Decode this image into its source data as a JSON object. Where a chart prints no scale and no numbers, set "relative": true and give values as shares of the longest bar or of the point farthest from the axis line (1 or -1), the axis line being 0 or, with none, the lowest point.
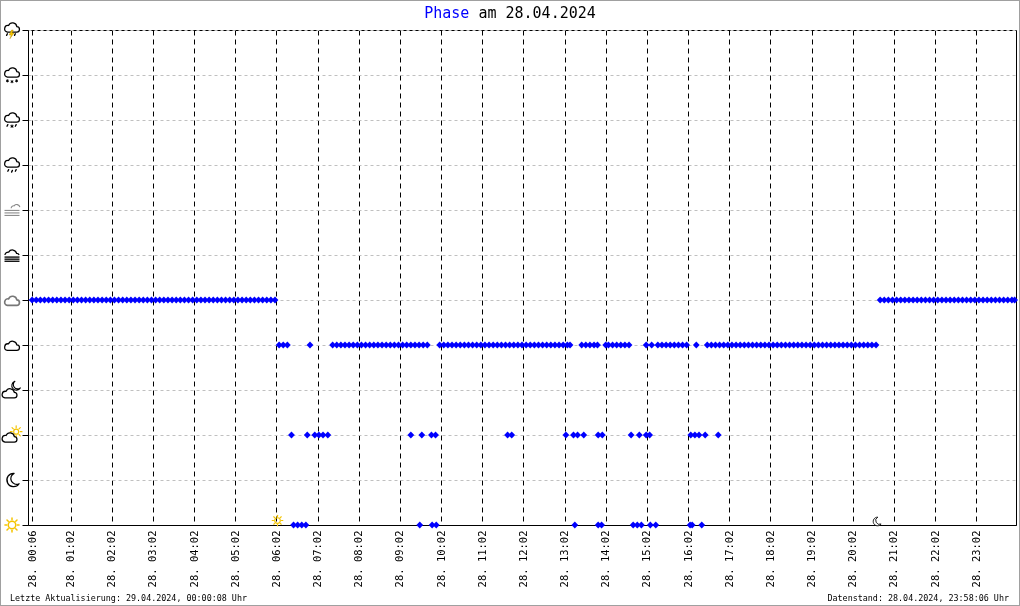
{
  "chart_data": {
    "type": "scatter",
    "title": "Phase am 28.04.2024",
    "annotations": [
      "Letzte Aktualisierung: 29.04.2024, 00:00:08 Uhr",
      "Datenstand: 28.04.2024, 23:58:06 Uhr"
    ],
    "relative": true,
    "grid": true,
    "marker": "diamond",
    "tick_labels": "x",
    "color": "#0000ff",
    "xlim": [
      "2024-04-28T00:00",
      "2024-04-29T00:00"
    ],
    "xticks": [
      {
        "value": "2024-04-28T00:06",
        "label": "28. 00:06"
      },
      {
        "value": "2024-04-28T01:02",
        "label": "28. 01:02"
      },
      {
        "value": "2024-04-28T02:02",
        "label": "28. 02:02"
      },
      {
        "value": "2024-04-28T03:02",
        "label": "28. 03:02"
      },
      {
        "value": "2024-04-28T04:02",
        "label": "28. 04:02"
      },
      {
        "value": "2024-04-28T05:02",
        "label": "28. 05:02"
      },
      {
        "value": "2024-04-28T06:02",
        "label": "28. 06:02"
      },
      {
        "value": "2024-04-28T07:02",
        "label": "28. 07:02"
      },
      {
        "value": "2024-04-28T08:02",
        "label": "28. 08:02"
      },
      {
        "value": "2024-04-28T09:02",
        "label": "28. 09:02"
      },
      {
        "value": "2024-04-28T10:02",
        "label": "28. 10:02"
      },
      {
        "value": "2024-04-28T11:02",
        "label": "28. 11:02"
      },
      {
        "value": "2024-04-28T12:02",
        "label": "28. 12:02"
      },
      {
        "value": "2024-04-28T13:02",
        "label": "28. 13:02"
      },
      {
        "value": "2024-04-28T14:02",
        "label": "28. 14:02"
      },
      {
        "value": "2024-04-28T15:02",
        "label": "28. 15:02"
      },
      {
        "value": "2024-04-28T16:02",
        "label": "28. 16:02"
      },
      {
        "value": "2024-04-28T17:02",
        "label": "28. 17:02"
      },
      {
        "value": "2024-04-28T18:02",
        "label": "28. 18:02"
      },
      {
        "value": "2024-04-28T19:02",
        "label": "28. 19:02"
      },
      {
        "value": "2024-04-28T20:02",
        "label": "28. 20:02"
      },
      {
        "value": "2024-04-28T21:02",
        "label": "28. 21:02"
      },
      {
        "value": "2024-04-28T22:02",
        "label": "28. 22:02"
      },
      {
        "value": "2024-04-28T23:02",
        "label": "28. 23:02"
      }
    ],
    "x": [
      "2024-04-28T00:06",
      "2024-04-28T00:12",
      "2024-04-28T00:18",
      "2024-04-28T00:24",
      "2024-04-28T00:30",
      "2024-04-28T00:36",
      "2024-04-28T00:42",
      "2024-04-28T00:48",
      "2024-04-28T00:54",
      "2024-04-28T01:00",
      "2024-04-28T01:06",
      "2024-04-28T01:12",
      "2024-04-28T01:18",
      "2024-04-28T01:24",
      "2024-04-28T01:30",
      "2024-04-28T01:36",
      "2024-04-28T01:42",
      "2024-04-28T01:48",
      "2024-04-28T01:54",
      "2024-04-28T02:00",
      "2024-04-28T02:06",
      "2024-04-28T02:12",
      "2024-04-28T02:18",
      "2024-04-28T02:24",
      "2024-04-28T02:30",
      "2024-04-28T02:36",
      "2024-04-28T02:42",
      "2024-04-28T02:48",
      "2024-04-28T02:54",
      "2024-04-28T03:00",
      "2024-04-28T03:06",
      "2024-04-28T03:12",
      "2024-04-28T03:18",
      "2024-04-28T03:24",
      "2024-04-28T03:30",
      "2024-04-28T03:36",
      "2024-04-28T03:42",
      "2024-04-28T03:48",
      "2024-04-28T03:54",
      "2024-04-28T04:00",
      "2024-04-28T04:06",
      "2024-04-28T04:12",
      "2024-04-28T04:18",
      "2024-04-28T04:24",
      "2024-04-28T04:30",
      "2024-04-28T04:36",
      "2024-04-28T04:42",
      "2024-04-28T04:48",
      "2024-04-28T04:54",
      "2024-04-28T05:00",
      "2024-04-28T05:06",
      "2024-04-28T05:12",
      "2024-04-28T05:18",
      "2024-04-28T05:24",
      "2024-04-28T05:30",
      "2024-04-28T05:36",
      "2024-04-28T05:42",
      "2024-04-28T05:48",
      "2024-04-28T05:54",
      "2024-04-28T06:00",
      "2024-04-28T20:42",
      "2024-04-28T20:48",
      "2024-04-28T20:54",
      "2024-04-28T21:00",
      "2024-04-28T21:06",
      "2024-04-28T21:12",
      "2024-04-28T21:18",
      "2024-04-28T21:24",
      "2024-04-28T21:30",
      "2024-04-28T21:36",
      "2024-04-28T21:42",
      "2024-04-28T21:48",
      "2024-04-28T21:54",
      "2024-04-28T22:00",
      "2024-04-28T22:06",
      "2024-04-28T22:12",
      "2024-04-28T22:18",
      "2024-04-28T22:24",
      "2024-04-28T22:30",
      "2024-04-28T22:36",
      "2024-04-28T22:42",
      "2024-04-28T22:48",
      "2024-04-28T22:54",
      "2024-04-28T23:00",
      "2024-04-28T23:06",
      "2024-04-28T23:12",
      "2024-04-28T23:18",
      "2024-04-28T23:24",
      "2024-04-28T23:30",
      "2024-04-28T23:36",
      "2024-04-28T23:42",
      "2024-04-28T23:48",
      "2024-04-28T23:54",
      "2024-04-28T23:58",
      "2024-04-28T06:06",
      "2024-04-28T06:12",
      "2024-04-28T06:18",
      "2024-04-28T06:51",
      "2024-04-28T07:24",
      "2024-04-28T07:30",
      "2024-04-28T07:36",
      "2024-04-28T07:42",
      "2024-04-28T07:48",
      "2024-04-28T07:54",
      "2024-04-28T08:00",
      "2024-04-28T08:06",
      "2024-04-28T08:12",
      "2024-04-28T08:18",
      "2024-04-28T08:24",
      "2024-04-28T08:30",
      "2024-04-28T08:36",
      "2024-04-28T08:42",
      "2024-04-28T08:48",
      "2024-04-28T08:54",
      "2024-04-28T09:00",
      "2024-04-28T09:06",
      "2024-04-28T09:12",
      "2024-04-28T09:18",
      "2024-04-28T09:24",
      "2024-04-28T09:30",
      "2024-04-28T09:36",
      "2024-04-28T09:42",
      "2024-04-28T10:00",
      "2024-04-28T10:06",
      "2024-04-28T10:12",
      "2024-04-28T10:18",
      "2024-04-28T10:24",
      "2024-04-28T10:30",
      "2024-04-28T10:36",
      "2024-04-28T10:42",
      "2024-04-28T10:48",
      "2024-04-28T10:54",
      "2024-04-28T11:00",
      "2024-04-28T11:06",
      "2024-04-28T11:12",
      "2024-04-28T11:18",
      "2024-04-28T11:24",
      "2024-04-28T11:30",
      "2024-04-28T11:36",
      "2024-04-28T11:42",
      "2024-04-28T11:48",
      "2024-04-28T11:54",
      "2024-04-28T12:00",
      "2024-04-28T12:06",
      "2024-04-28T12:12",
      "2024-04-28T12:18",
      "2024-04-28T12:24",
      "2024-04-28T12:30",
      "2024-04-28T12:36",
      "2024-04-28T12:42",
      "2024-04-28T12:48",
      "2024-04-28T12:54",
      "2024-04-28T13:00",
      "2024-04-28T13:06",
      "2024-04-28T13:10",
      "2024-04-28T13:27",
      "2024-04-28T13:33",
      "2024-04-28T13:39",
      "2024-04-28T13:45",
      "2024-04-28T13:50",
      "2024-04-28T14:02",
      "2024-04-28T14:06",
      "2024-04-28T14:12",
      "2024-04-28T14:18",
      "2024-04-28T14:24",
      "2024-04-28T14:30",
      "2024-04-28T14:36",
      "2024-04-28T15:01",
      "2024-04-28T15:09",
      "2024-04-28T15:18",
      "2024-04-28T15:24",
      "2024-04-28T15:30",
      "2024-04-28T15:36",
      "2024-04-28T15:42",
      "2024-04-28T15:48",
      "2024-04-28T15:54",
      "2024-04-28T16:00",
      "2024-04-28T16:14",
      "2024-04-28T16:30",
      "2024-04-28T16:36",
      "2024-04-28T16:42",
      "2024-04-28T16:48",
      "2024-04-28T16:54",
      "2024-04-28T17:00",
      "2024-04-28T17:06",
      "2024-04-28T17:12",
      "2024-04-28T17:18",
      "2024-04-28T17:24",
      "2024-04-28T17:30",
      "2024-04-28T17:36",
      "2024-04-28T17:42",
      "2024-04-28T17:48",
      "2024-04-28T17:54",
      "2024-04-28T18:00",
      "2024-04-28T18:06",
      "2024-04-28T18:12",
      "2024-04-28T18:18",
      "2024-04-28T18:24",
      "2024-04-28T18:30",
      "2024-04-28T18:36",
      "2024-04-28T18:42",
      "2024-04-28T18:48",
      "2024-04-28T18:54",
      "2024-04-28T19:00",
      "2024-04-28T19:06",
      "2024-04-28T19:12",
      "2024-04-28T19:18",
      "2024-04-28T19:24",
      "2024-04-28T19:30",
      "2024-04-28T19:36",
      "2024-04-28T19:42",
      "2024-04-28T19:48",
      "2024-04-28T19:54",
      "2024-04-28T20:00",
      "2024-04-28T20:06",
      "2024-04-28T20:12",
      "2024-04-28T20:18",
      "2024-04-28T20:24",
      "2024-04-28T20:30",
      "2024-04-28T20:36",
      "2024-04-28T06:24",
      "2024-04-28T06:47",
      "2024-04-28T06:58",
      "2024-04-28T07:04",
      "2024-04-28T07:10",
      "2024-04-28T07:17",
      "2024-04-28T09:18",
      "2024-04-28T09:34",
      "2024-04-28T09:48",
      "2024-04-28T09:54",
      "2024-04-28T11:39",
      "2024-04-28T11:45",
      "2024-04-28T13:04",
      "2024-04-28T13:15",
      "2024-04-28T13:21",
      "2024-04-28T13:30",
      "2024-04-28T13:51",
      "2024-04-28T13:57",
      "2024-04-28T14:39",
      "2024-04-28T14:51",
      "2024-04-28T15:01",
      "2024-04-28T15:06",
      "2024-04-28T16:06",
      "2024-04-28T16:12",
      "2024-04-28T16:18",
      "2024-04-28T16:27",
      "2024-04-28T16:46",
      "2024-04-28T06:27",
      "2024-04-28T06:33",
      "2024-04-28T06:39",
      "2024-04-28T06:45",
      "2024-04-28T09:31",
      "2024-04-28T09:49",
      "2024-04-28T09:55",
      "2024-04-28T13:17",
      "2024-04-28T13:51",
      "2024-04-28T13:56",
      "2024-04-28T14:42",
      "2024-04-28T14:48",
      "2024-04-28T14:54",
      "2024-04-28T15:07",
      "2024-04-28T15:15",
      "2024-04-28T16:05",
      "2024-04-28T16:08",
      "2024-04-28T16:22"
    ],
    "values": [
      1,
      1,
      1,
      1,
      1,
      1,
      1,
      1,
      1,
      1,
      1,
      1,
      1,
      1,
      1,
      1,
      1,
      1,
      1,
      1,
      1,
      1,
      1,
      1,
      1,
      1,
      1,
      1,
      1,
      1,
      1,
      1,
      1,
      1,
      1,
      1,
      1,
      1,
      1,
      1,
      1,
      1,
      1,
      1,
      1,
      1,
      1,
      1,
      1,
      1,
      1,
      1,
      1,
      1,
      1,
      1,
      1,
      1,
      1,
      1,
      1,
      1,
      1,
      1,
      1,
      1,
      1,
      1,
      1,
      1,
      1,
      1,
      1,
      1,
      1,
      1,
      1,
      1,
      1,
      1,
      1,
      1,
      1,
      1,
      1,
      1,
      1,
      1,
      1,
      1,
      1,
      1,
      1,
      1,
      0.8,
      0.8,
      0.8,
      0.8,
      0.8,
      0.8,
      0.8,
      0.8,
      0.8,
      0.8,
      0.8,
      0.8,
      0.8,
      0.8,
      0.8,
      0.8,
      0.8,
      0.8,
      0.8,
      0.8,
      0.8,
      0.8,
      0.8,
      0.8,
      0.8,
      0.8,
      0.8,
      0.8,
      0.8,
      0.8,
      0.8,
      0.8,
      0.8,
      0.8,
      0.8,
      0.8,
      0.8,
      0.8,
      0.8,
      0.8,
      0.8,
      0.8,
      0.8,
      0.8,
      0.8,
      0.8,
      0.8,
      0.8,
      0.8,
      0.8,
      0.8,
      0.8,
      0.8,
      0.8,
      0.8,
      0.8,
      0.8,
      0.8,
      0.8,
      0.8,
      0.8,
      0.8,
      0.8,
      0.8,
      0.8,
      0.8,
      0.8,
      0.8,
      0.8,
      0.8,
      0.8,
      0.8,
      0.8,
      0.8,
      0.8,
      0.8,
      0.8,
      0.8,
      0.8,
      0.8,
      0.8,
      0.8,
      0.8,
      0.8,
      0.8,
      0.8,
      0.8,
      0.8,
      0.8,
      0.8,
      0.8,
      0.8,
      0.8,
      0.8,
      0.8,
      0.8,
      0.8,
      0.8,
      0.8,
      0.8,
      0.8,
      0.8,
      0.8,
      0.8,
      0.8,
      0.8,
      0.8,
      0.8,
      0.8,
      0.8,
      0.8,
      0.8,
      0.8,
      0.8,
      0.8,
      0.8,
      0.8,
      0.8,
      0.8,
      0.8,
      0.8,
      0.8,
      0.8,
      0.8,
      0.8,
      0.8,
      0.4,
      0.4,
      0.4,
      0.4,
      0.4,
      0.4,
      0.4,
      0.4,
      0.4,
      0.4,
      0.4,
      0.4,
      0.4,
      0.4,
      0.4,
      0.4,
      0.4,
      0.4,
      0.4,
      0.4,
      0.4,
      0.4,
      0.4,
      0.4,
      0.4,
      0.4,
      0.4,
      0,
      0,
      0,
      0,
      0,
      0,
      0,
      0,
      0,
      0,
      0,
      0,
      0,
      0,
      0,
      0,
      0,
      0
    ]
  }
}
